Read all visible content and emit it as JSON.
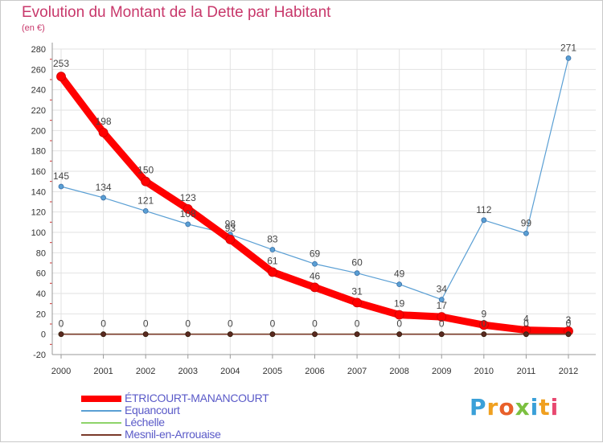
{
  "title": "Evolution du Montant de la Dette par Habitant",
  "unit": "(en €)",
  "brand": "Proxiti",
  "chart_data": {
    "type": "line",
    "title": "Evolution du Montant de la Dette par Habitant",
    "xlabel": "",
    "ylabel": "(en €)",
    "x": [
      "2000",
      "2001",
      "2002",
      "2003",
      "2004",
      "2005",
      "2006",
      "2007",
      "2008",
      "2009",
      "2010",
      "2011",
      "2012"
    ],
    "ylim": [
      -20,
      280
    ],
    "yticks": [
      -20,
      0,
      20,
      40,
      60,
      80,
      100,
      120,
      140,
      160,
      180,
      200,
      220,
      240,
      260,
      280
    ],
    "grid": true,
    "legend_position": "bottom-left",
    "series": [
      {
        "name": "ÉTRICOURT-MANANCOURT",
        "color": "#ff0000",
        "values": [
          253,
          198,
          150,
          123,
          93,
          61,
          46,
          31,
          19,
          17,
          9,
          4,
          3
        ]
      },
      {
        "name": "Equancourt",
        "color": "#5a9fd4",
        "values": [
          145,
          134,
          121,
          108,
          98,
          83,
          69,
          60,
          49,
          34,
          112,
          99,
          271
        ]
      },
      {
        "name": "Léchelle",
        "color": "#8ed46a",
        "values": [
          0,
          0,
          0,
          0,
          0,
          0,
          0,
          0,
          0,
          0,
          0,
          0,
          0
        ]
      },
      {
        "name": "Mesnil-en-Arrouaise",
        "color": "#7a3a2a",
        "values": [
          0,
          0,
          0,
          0,
          0,
          0,
          0,
          0,
          0,
          0,
          0,
          0,
          0
        ]
      }
    ]
  }
}
